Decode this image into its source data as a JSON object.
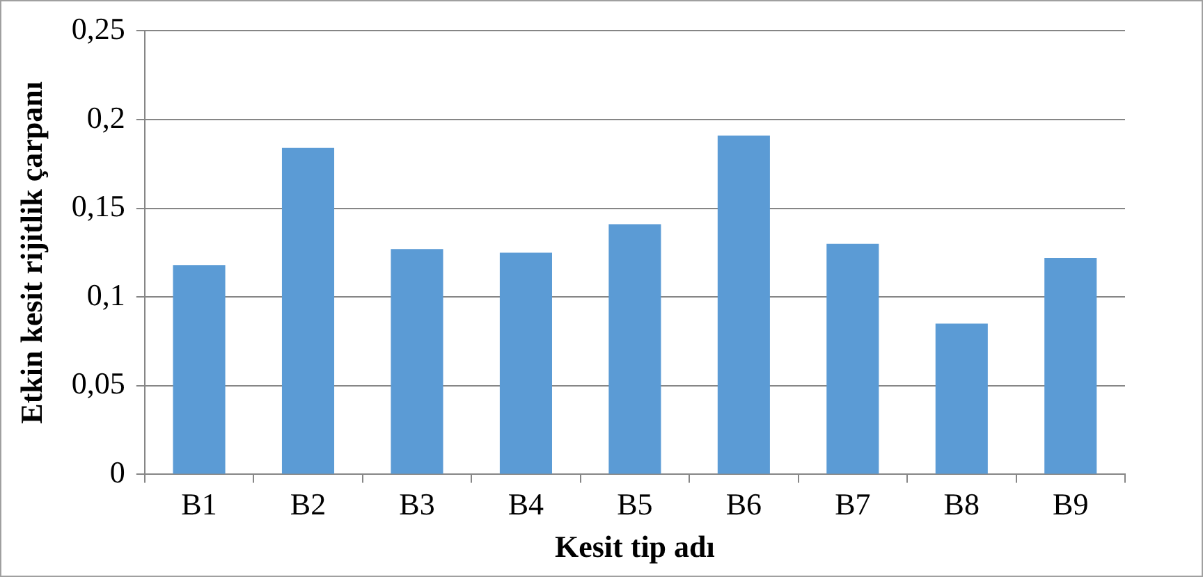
{
  "chart_data": {
    "type": "bar",
    "xlabel": "Kesit tip adı",
    "ylabel": "Etkin kesit rijitlik çarpanı",
    "categories": [
      "B1",
      "B2",
      "B3",
      "B4",
      "B5",
      "B6",
      "B7",
      "B8",
      "B9"
    ],
    "values": [
      0.118,
      0.184,
      0.127,
      0.125,
      0.141,
      0.191,
      0.13,
      0.085,
      0.122
    ],
    "color": "#5b9bd5",
    "ylim": [
      0,
      0.25
    ],
    "yticks": [
      {
        "value": 0,
        "label": "0"
      },
      {
        "value": 0.05,
        "label": "0,05"
      },
      {
        "value": 0.1,
        "label": "0,1"
      },
      {
        "value": 0.15,
        "label": "0,15"
      },
      {
        "value": 0.2,
        "label": "0,2"
      },
      {
        "value": 0.25,
        "label": "0,25"
      }
    ],
    "grid": "y",
    "legend": false
  }
}
